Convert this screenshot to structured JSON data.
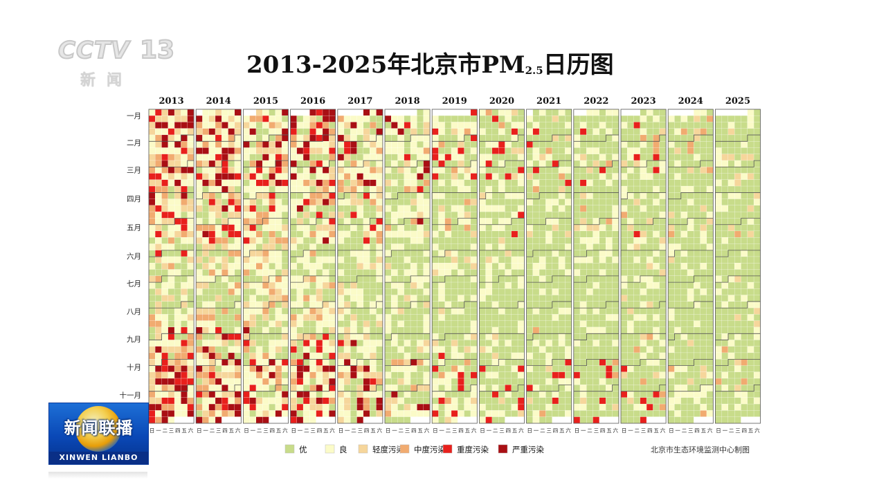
{
  "broadcaster": {
    "logo_text": "CCTV",
    "channel_number": "13",
    "logo_subtitle": "新闻",
    "program_title": "新闻联播",
    "program_pinyin": "XINWEN LIANBO"
  },
  "title_main": "2013-2025年北京市PM",
  "title_subscript": "2.5",
  "title_tail": "日历图",
  "source_note": "北京市生态环境监测中心制图",
  "chart_data": {
    "type": "heatmap",
    "title": "2013-2025年北京市PM2.5日历图",
    "years": [
      "2013",
      "2014",
      "2015",
      "2016",
      "2017",
      "2018",
      "2019",
      "2020",
      "2021",
      "2022",
      "2023",
      "2024",
      "2025"
    ],
    "month_labels": [
      "一月",
      "二月",
      "三月",
      "四月",
      "五月",
      "六月",
      "七月",
      "八月",
      "九月",
      "十月",
      "十一月"
    ],
    "weekday_labels": [
      "日",
      "一",
      "二",
      "三",
      "四",
      "五",
      "六"
    ],
    "categories": [
      "优",
      "良",
      "轻度污染",
      "中度污染",
      "重度污染",
      "严重污染"
    ],
    "category_colors": [
      "#c8dc8a",
      "#fbfbc8",
      "#f6d69b",
      "#f1ab70",
      "#e8201c",
      "#a90f14"
    ],
    "legend_position": "bottom",
    "year_category_share": [
      {
        "year": "2013",
        "shares": [
          0.18,
          0.3,
          0.2,
          0.12,
          0.13,
          0.07
        ]
      },
      {
        "year": "2014",
        "shares": [
          0.2,
          0.32,
          0.2,
          0.12,
          0.11,
          0.05
        ]
      },
      {
        "year": "2015",
        "shares": [
          0.24,
          0.33,
          0.18,
          0.1,
          0.1,
          0.05
        ]
      },
      {
        "year": "2016",
        "shares": [
          0.28,
          0.33,
          0.17,
          0.09,
          0.09,
          0.04
        ]
      },
      {
        "year": "2017",
        "shares": [
          0.38,
          0.34,
          0.13,
          0.07,
          0.06,
          0.02
        ]
      },
      {
        "year": "2018",
        "shares": [
          0.5,
          0.32,
          0.09,
          0.05,
          0.035,
          0.005
        ]
      },
      {
        "year": "2019",
        "shares": [
          0.55,
          0.3,
          0.08,
          0.04,
          0.03,
          0.0
        ]
      },
      {
        "year": "2020",
        "shares": [
          0.62,
          0.27,
          0.06,
          0.03,
          0.02,
          0.0
        ]
      },
      {
        "year": "2021",
        "shares": [
          0.72,
          0.21,
          0.04,
          0.02,
          0.01,
          0.0
        ]
      },
      {
        "year": "2022",
        "shares": [
          0.74,
          0.2,
          0.04,
          0.015,
          0.005,
          0.0
        ]
      },
      {
        "year": "2023",
        "shares": [
          0.7,
          0.21,
          0.05,
          0.03,
          0.01,
          0.0
        ]
      },
      {
        "year": "2024",
        "shares": [
          0.76,
          0.19,
          0.04,
          0.01,
          0.0,
          0.0
        ]
      },
      {
        "year": "2025",
        "shares": [
          0.77,
          0.18,
          0.04,
          0.01,
          0.0,
          0.0
        ]
      }
    ]
  }
}
